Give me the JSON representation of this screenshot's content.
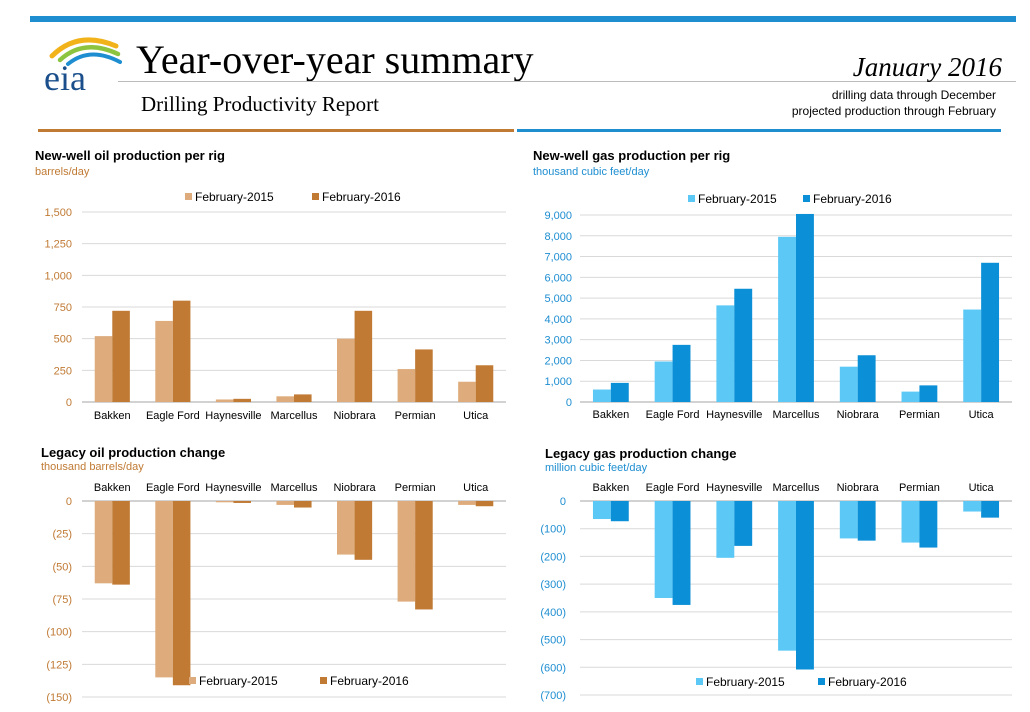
{
  "header": {
    "logo_text": "eia",
    "title": "Year-over-year summary",
    "subtitle": "Drilling Productivity Report",
    "date": "January 2016",
    "note_line1": "drilling data through December",
    "note_line2": "projected production through February"
  },
  "colors": {
    "oil_2015": "#deac7c",
    "oil_2016": "#c07a34",
    "gas_2015": "#5bc8f5",
    "gas_2016": "#0b8fd6",
    "oil_axis_text": "#c07a34",
    "gas_axis_text": "#1e8ed1",
    "grid": "#d9d9d9"
  },
  "chart_data": [
    {
      "type": "bar",
      "title": "New-well oil production per rig",
      "unit": "barrels/day",
      "categories": [
        "Bakken",
        "Eagle Ford",
        "Haynesville",
        "Marcellus",
        "Niobrara",
        "Permian",
        "Utica"
      ],
      "series": [
        {
          "name": "February-2015",
          "values": [
            520,
            640,
            20,
            45,
            500,
            260,
            160
          ]
        },
        {
          "name": "February-2016",
          "values": [
            720,
            800,
            25,
            60,
            720,
            415,
            290
          ]
        }
      ],
      "ylim": [
        0,
        1500
      ],
      "yticks": [
        0,
        250,
        500,
        750,
        1000,
        1250,
        1500
      ],
      "ytick_labels": [
        "0",
        "250",
        "500",
        "750",
        "1,000",
        "1,250",
        "1,500"
      ],
      "legend": "top-center",
      "grid": true
    },
    {
      "type": "bar",
      "title": "New-well gas production per rig",
      "unit": "thousand cubic feet/day",
      "categories": [
        "Bakken",
        "Eagle Ford",
        "Haynesville",
        "Marcellus",
        "Niobrara",
        "Permian",
        "Utica"
      ],
      "series": [
        {
          "name": "February-2015",
          "values": [
            600,
            1950,
            4650,
            7950,
            1700,
            500,
            4450
          ]
        },
        {
          "name": "February-2016",
          "values": [
            920,
            2750,
            5450,
            9050,
            2250,
            800,
            6700
          ]
        }
      ],
      "ylim": [
        0,
        9000
      ],
      "yticks": [
        0,
        1000,
        2000,
        3000,
        4000,
        5000,
        6000,
        7000,
        8000,
        9000
      ],
      "ytick_labels": [
        "0",
        "1,000",
        "2,000",
        "3,000",
        "4,000",
        "5,000",
        "6,000",
        "7,000",
        "8,000",
        "9,000"
      ],
      "legend": "top-center",
      "grid": true
    },
    {
      "type": "bar",
      "title": "Legacy oil production change",
      "unit": "thousand barrels/day",
      "categories": [
        "Bakken",
        "Eagle Ford",
        "Haynesville",
        "Marcellus",
        "Niobrara",
        "Permian",
        "Utica"
      ],
      "series": [
        {
          "name": "February-2015",
          "values": [
            -63,
            -135,
            -1,
            -3,
            -41,
            -77,
            -3
          ]
        },
        {
          "name": "February-2016",
          "values": [
            -64,
            -141,
            -1.5,
            -5,
            -45,
            -83,
            -4
          ]
        }
      ],
      "ylim": [
        -150,
        0
      ],
      "yticks": [
        0,
        -25,
        -50,
        -75,
        -100,
        -125,
        -150
      ],
      "ytick_labels": [
        "0",
        "(25)",
        "(50)",
        "(75)",
        "(100)",
        "(125)",
        "(150)"
      ],
      "legend": "bottom-center",
      "grid": true
    },
    {
      "type": "bar",
      "title": "Legacy gas production change",
      "unit": "million cubic feet/day",
      "categories": [
        "Bakken",
        "Eagle Ford",
        "Haynesville",
        "Marcellus",
        "Niobrara",
        "Permian",
        "Utica"
      ],
      "series": [
        {
          "name": "February-2015",
          "values": [
            -65,
            -350,
            -205,
            -540,
            -135,
            -150,
            -38
          ]
        },
        {
          "name": "February-2016",
          "values": [
            -73,
            -375,
            -162,
            -608,
            -143,
            -168,
            -60
          ]
        }
      ],
      "ylim": [
        -700,
        0
      ],
      "yticks": [
        0,
        -100,
        -200,
        -300,
        -400,
        -500,
        -600,
        -700
      ],
      "ytick_labels": [
        "0",
        "(100)",
        "(200)",
        "(300)",
        "(400)",
        "(500)",
        "(600)",
        "(700)"
      ],
      "legend": "bottom-center",
      "grid": true
    }
  ]
}
